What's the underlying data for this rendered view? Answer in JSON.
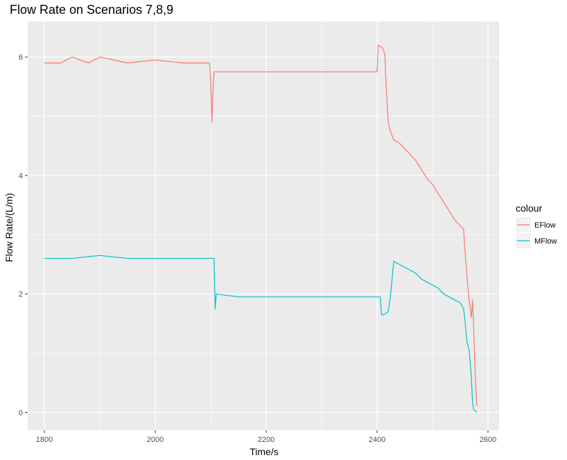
{
  "chart_data": {
    "type": "line",
    "title": "Flow Rate on Scenarios 7,8,9",
    "xlabel": "Time/s",
    "ylabel": "Flow Rate/(L/m)",
    "xlim": [
      1770,
      2620
    ],
    "ylim": [
      -0.3,
      6.6
    ],
    "x_ticks": [
      1800,
      2000,
      2200,
      2400,
      2600
    ],
    "y_ticks": [
      0,
      2,
      4,
      6
    ],
    "x_tick_labels": [
      "1800",
      "2000",
      "2200",
      "2400",
      "2600"
    ],
    "y_tick_labels": [
      "0",
      "2",
      "4",
      "6"
    ],
    "grid": true,
    "legend": {
      "title": "colour",
      "position": "right"
    },
    "series": [
      {
        "name": "EFlow",
        "color": "#F8766D",
        "points": [
          [
            1800,
            5.9
          ],
          [
            1830,
            5.9
          ],
          [
            1850,
            6.0
          ],
          [
            1880,
            5.9
          ],
          [
            1900,
            6.0
          ],
          [
            1950,
            5.9
          ],
          [
            2000,
            5.95
          ],
          [
            2050,
            5.9
          ],
          [
            2080,
            5.9
          ],
          [
            2098,
            5.9
          ],
          [
            2100,
            5.6
          ],
          [
            2102,
            4.9
          ],
          [
            2104,
            5.4
          ],
          [
            2106,
            5.75
          ],
          [
            2150,
            5.75
          ],
          [
            2200,
            5.75
          ],
          [
            2250,
            5.75
          ],
          [
            2300,
            5.75
          ],
          [
            2350,
            5.75
          ],
          [
            2400,
            5.75
          ],
          [
            2402,
            6.2
          ],
          [
            2410,
            6.15
          ],
          [
            2414,
            6.05
          ],
          [
            2416,
            5.6
          ],
          [
            2420,
            4.9
          ],
          [
            2424,
            4.75
          ],
          [
            2430,
            4.6
          ],
          [
            2440,
            4.55
          ],
          [
            2450,
            4.45
          ],
          [
            2460,
            4.35
          ],
          [
            2470,
            4.25
          ],
          [
            2480,
            4.1
          ],
          [
            2490,
            3.95
          ],
          [
            2500,
            3.85
          ],
          [
            2510,
            3.7
          ],
          [
            2520,
            3.55
          ],
          [
            2530,
            3.4
          ],
          [
            2540,
            3.25
          ],
          [
            2550,
            3.15
          ],
          [
            2556,
            3.1
          ],
          [
            2558,
            2.8
          ],
          [
            2562,
            2.3
          ],
          [
            2566,
            1.9
          ],
          [
            2570,
            1.6
          ],
          [
            2572,
            1.9
          ],
          [
            2574,
            1.5
          ],
          [
            2576,
            0.9
          ],
          [
            2578,
            0.4
          ],
          [
            2580,
            0.1
          ]
        ]
      },
      {
        "name": "MFlow",
        "color": "#00BFC4",
        "points": [
          [
            1800,
            2.6
          ],
          [
            1850,
            2.6
          ],
          [
            1900,
            2.65
          ],
          [
            1950,
            2.6
          ],
          [
            2000,
            2.6
          ],
          [
            2050,
            2.6
          ],
          [
            2100,
            2.6
          ],
          [
            2106,
            2.6
          ],
          [
            2108,
            1.75
          ],
          [
            2110,
            2.0
          ],
          [
            2150,
            1.95
          ],
          [
            2200,
            1.95
          ],
          [
            2250,
            1.95
          ],
          [
            2300,
            1.95
          ],
          [
            2350,
            1.95
          ],
          [
            2400,
            1.95
          ],
          [
            2406,
            1.95
          ],
          [
            2408,
            1.65
          ],
          [
            2412,
            1.65
          ],
          [
            2420,
            1.7
          ],
          [
            2424,
            1.95
          ],
          [
            2430,
            2.55
          ],
          [
            2440,
            2.5
          ],
          [
            2450,
            2.45
          ],
          [
            2460,
            2.4
          ],
          [
            2470,
            2.35
          ],
          [
            2480,
            2.25
          ],
          [
            2490,
            2.2
          ],
          [
            2500,
            2.15
          ],
          [
            2510,
            2.1
          ],
          [
            2520,
            2.0
          ],
          [
            2530,
            1.95
          ],
          [
            2540,
            1.9
          ],
          [
            2550,
            1.85
          ],
          [
            2556,
            1.75
          ],
          [
            2558,
            1.6
          ],
          [
            2560,
            1.4
          ],
          [
            2562,
            1.2
          ],
          [
            2566,
            1.05
          ],
          [
            2570,
            0.6
          ],
          [
            2572,
            0.2
          ],
          [
            2574,
            0.05
          ],
          [
            2580,
            0.0
          ]
        ]
      }
    ]
  }
}
